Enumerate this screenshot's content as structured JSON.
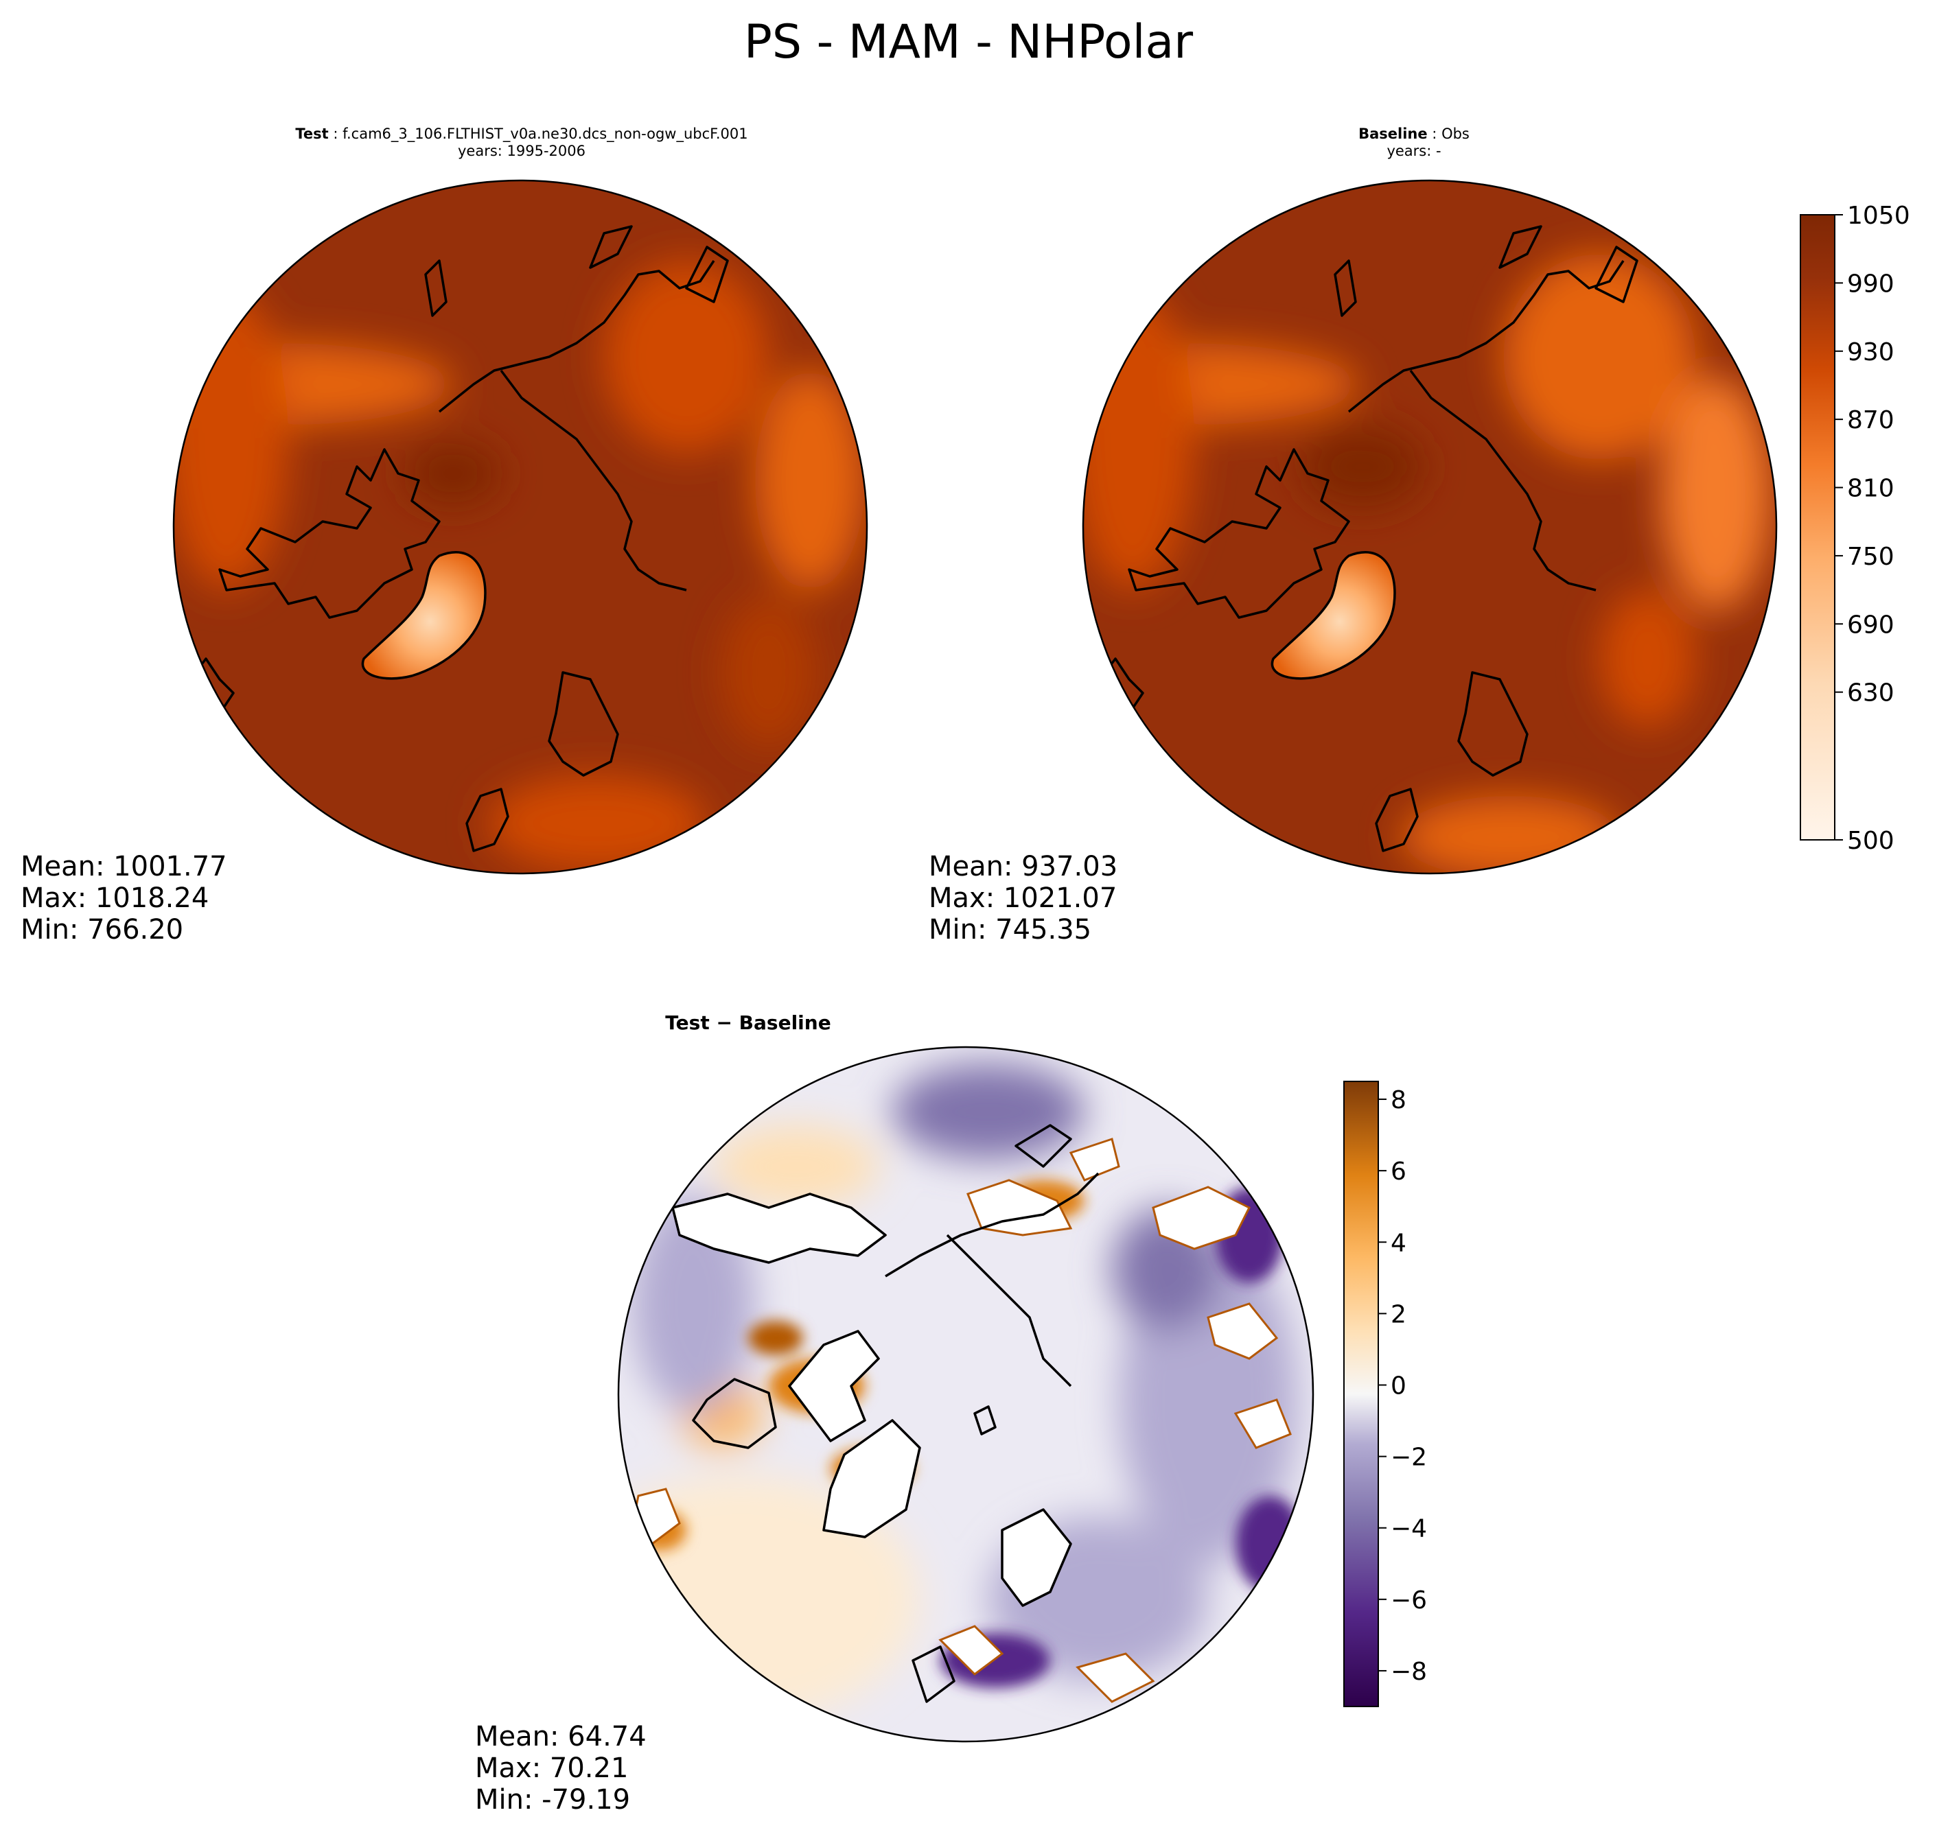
{
  "suptitle": "PS - MAM - NHPolar",
  "panels": {
    "test": {
      "label": "Test",
      "case": "f.cam6_3_106.FLTHIST_v0a.ne30.dcs_non-ogw_ubcF.001",
      "years": "years: 1995-2006",
      "mean": "Mean: 1001.77",
      "max": "Max: 1018.24",
      "min": "Min: 766.20"
    },
    "baseline": {
      "label": "Baseline",
      "case": "Obs",
      "years": "years: -",
      "mean": "Mean: 937.03",
      "max": "Max: 1021.07",
      "min": "Min: 745.35"
    },
    "diff": {
      "label": "Test − Baseline",
      "mean": "Mean: 64.74",
      "max": "Max: 70.21",
      "min": "Min: -79.19"
    }
  },
  "colors": {
    "ps_scale": [
      "#fff5eb",
      "#feebd8",
      "#fdd9b4",
      "#fdc590",
      "#fdae6b",
      "#fd9446",
      "#f47c2a",
      "#e5630f",
      "#d04a04",
      "#b03b03",
      "#96300a",
      "#7f2704"
    ],
    "diff_scale": [
      "#2d004b",
      "#542788",
      "#8073ac",
      "#b2abd2",
      "#d8daeb",
      "#f7f7f7",
      "#fee0b6",
      "#fdb863",
      "#e08214",
      "#b35806",
      "#7f3b08"
    ],
    "coast": "#000000"
  },
  "chart_data": [
    {
      "type": "heatmap",
      "projection": "north-polar-stereographic",
      "title": "Test: f.cam6_3_106.FLTHIST_v0a.ne30.dcs_non-ogw_ubcF.001",
      "subtitle": "years: 1995-2006",
      "variable": "PS",
      "summary": {
        "mean": 1001.77,
        "max": 1018.24,
        "min": 766.2
      }
    },
    {
      "type": "heatmap",
      "projection": "north-polar-stereographic",
      "title": "Baseline: Obs",
      "subtitle": "years: -",
      "variable": "PS",
      "summary": {
        "mean": 937.03,
        "max": 1021.07,
        "min": 745.35
      }
    },
    {
      "type": "heatmap",
      "projection": "north-polar-stereographic",
      "title": "Test − Baseline",
      "variable": "PS difference",
      "summary": {
        "mean": 64.74,
        "max": 70.21,
        "min": -79.19
      }
    }
  ],
  "colorbars": {
    "ps": {
      "range": [
        500,
        1050
      ],
      "ticks": [
        500,
        630,
        690,
        750,
        810,
        870,
        930,
        990,
        1050
      ],
      "tick_labels": [
        "500",
        "630",
        "690",
        "750",
        "810",
        "870",
        "930",
        "990",
        "1050"
      ]
    },
    "diff": {
      "range": [
        -9,
        8.5
      ],
      "ticks": [
        -8,
        -6,
        -4,
        -2,
        0,
        2,
        4,
        6,
        8
      ],
      "tick_labels": [
        "−8",
        "−6",
        "−4",
        "−2",
        "0",
        "2",
        "4",
        "6",
        "8"
      ]
    }
  }
}
